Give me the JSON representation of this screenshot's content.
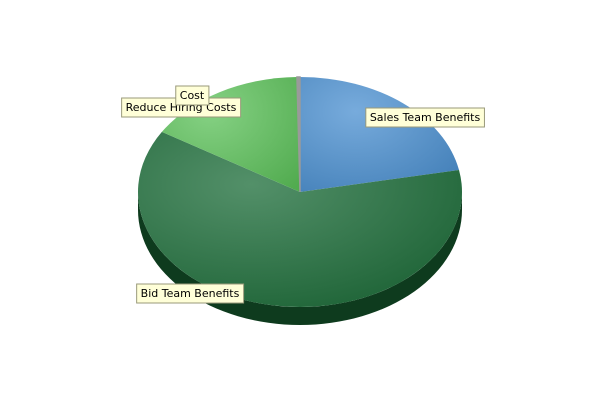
{
  "chart_data": {
    "type": "pie",
    "style": "3d",
    "categories": [
      "Sales Team Benefits",
      "Bid Team Benefits",
      "Reduce Hiring Costs",
      "Cost"
    ],
    "values": [
      22,
      62,
      16,
      0.3
    ],
    "colors": [
      "#4a8fd0",
      "#1a6b37",
      "#5cc25a",
      "#9a9a9a"
    ],
    "label_background": "#ffffd8",
    "label_border": "#9a9a7a",
    "title": "",
    "legend": "none"
  }
}
